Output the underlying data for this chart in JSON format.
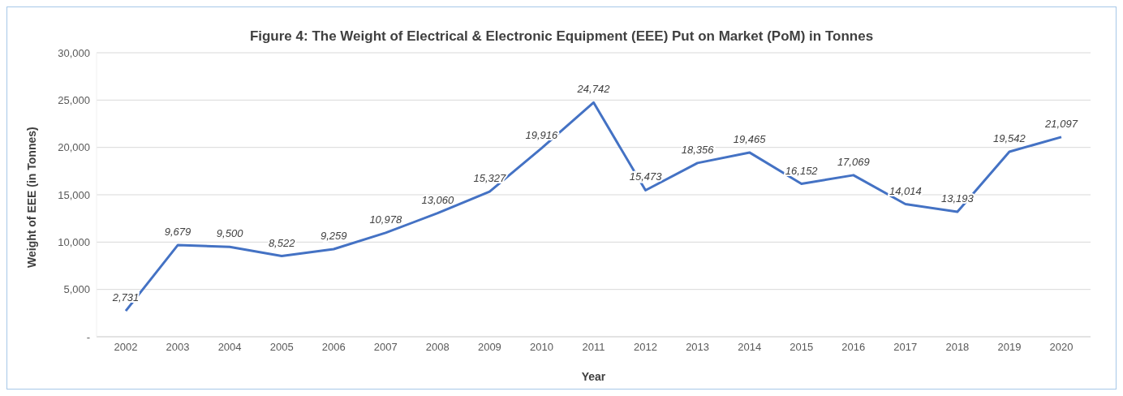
{
  "chart_data": {
    "type": "line",
    "title": "Figure 4: The Weight of Electrical & Electronic Equipment (EEE) Put on Market (PoM) in Tonnes",
    "xlabel": "Year",
    "ylabel": "Weight of EEE (in Tonnes)",
    "categories": [
      "2002",
      "2003",
      "2004",
      "2005",
      "2006",
      "2007",
      "2008",
      "2009",
      "2010",
      "2011",
      "2012",
      "2013",
      "2014",
      "2015",
      "2016",
      "2017",
      "2018",
      "2019",
      "2020"
    ],
    "series": [
      {
        "color": "#4472c4",
        "values": [
          2731,
          9679,
          9500,
          8522,
          9259,
          10978,
          13060,
          15327,
          19916,
          24742,
          15473,
          18356,
          19465,
          16152,
          17069,
          14014,
          13193,
          19542,
          21097
        ],
        "value_labels": [
          "2,731",
          "9,679",
          "9,500",
          "8,522",
          "9,259",
          "10,978",
          "13,060",
          "15,327",
          "19,916",
          "24,742",
          "15,473",
          "18,356",
          "19,465",
          "16,152",
          "17,069",
          "14,014",
          "13,193",
          "19,542",
          "21,097"
        ]
      }
    ],
    "ylim": [
      0,
      30000
    ],
    "yticks": [
      {
        "value": 0,
        "label": "-"
      },
      {
        "value": 5000,
        "label": "5,000"
      },
      {
        "value": 10000,
        "label": "10,000"
      },
      {
        "value": 15000,
        "label": "15,000"
      },
      {
        "value": 20000,
        "label": "20,000"
      },
      {
        "value": 25000,
        "label": "25,000"
      },
      {
        "value": 30000,
        "label": "30,000"
      }
    ],
    "grid": "y",
    "legend": false,
    "marker": "none",
    "line_style": "solid"
  }
}
